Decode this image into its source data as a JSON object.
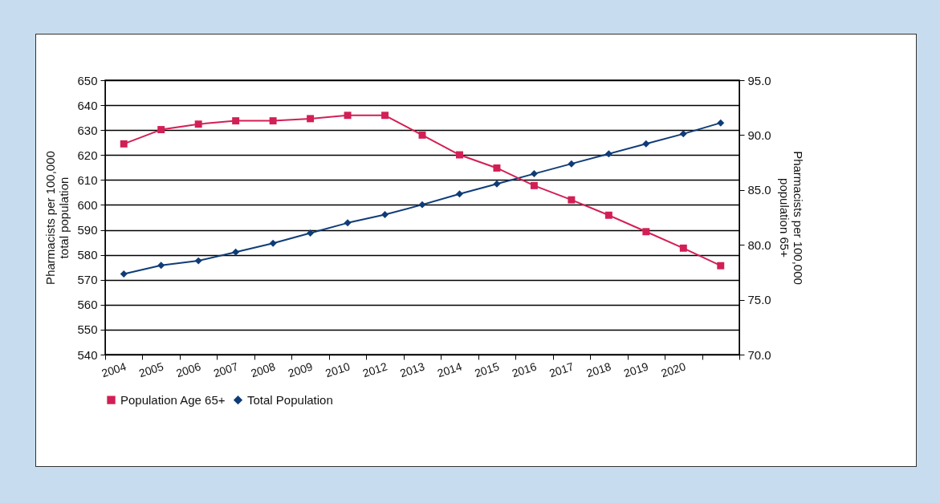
{
  "chart_data": {
    "type": "line",
    "ylabel": "Pharmacists per 100,000 total population",
    "y2label": "Pharmacists per 100,000 population 65+",
    "categories": [
      "2004",
      "2005",
      "2006",
      "2007",
      "2008",
      "2009",
      "2010",
      "2012",
      "2013",
      "2014",
      "2015",
      "2016",
      "2017",
      "2018",
      "2019",
      "2020",
      null
    ],
    "series": [
      {
        "name": "Population Age 65+",
        "color": "#d21f55",
        "axis": "y2",
        "marker": "square",
        "values": [
          89.2,
          90.5,
          91.0,
          91.3,
          91.3,
          91.5,
          91.8,
          91.8,
          90.0,
          88.2,
          87.0,
          85.4,
          84.1,
          82.7,
          81.2,
          79.7,
          78.1
        ]
      },
      {
        "name": "Total Population",
        "color": "#0f3c78",
        "marker": "diamond",
        "values": [
          572.3,
          575.8,
          577.6,
          581.1,
          584.6,
          588.7,
          592.8,
          596.1,
          600.1,
          604.4,
          608.4,
          612.5,
          616.5,
          620.5,
          624.5,
          628.5,
          632.9
        ]
      }
    ],
    "ylim": [
      540,
      650
    ],
    "yticks": [
      540,
      550,
      560,
      570,
      580,
      590,
      600,
      610,
      620,
      630,
      640,
      650
    ],
    "y2lim": [
      70,
      95
    ],
    "y2ticks": [
      {
        "value": 70,
        "label": "70.0"
      },
      {
        "value": 75,
        "label": "75.0"
      },
      {
        "value": 80,
        "label": "80.0"
      },
      {
        "value": 85,
        "label": "85.0"
      },
      {
        "value": 90,
        "label": "90.0"
      },
      {
        "value": 95,
        "label": "95.0"
      }
    ],
    "grid": "y",
    "legend": "bottom",
    "line_style": "solid"
  }
}
